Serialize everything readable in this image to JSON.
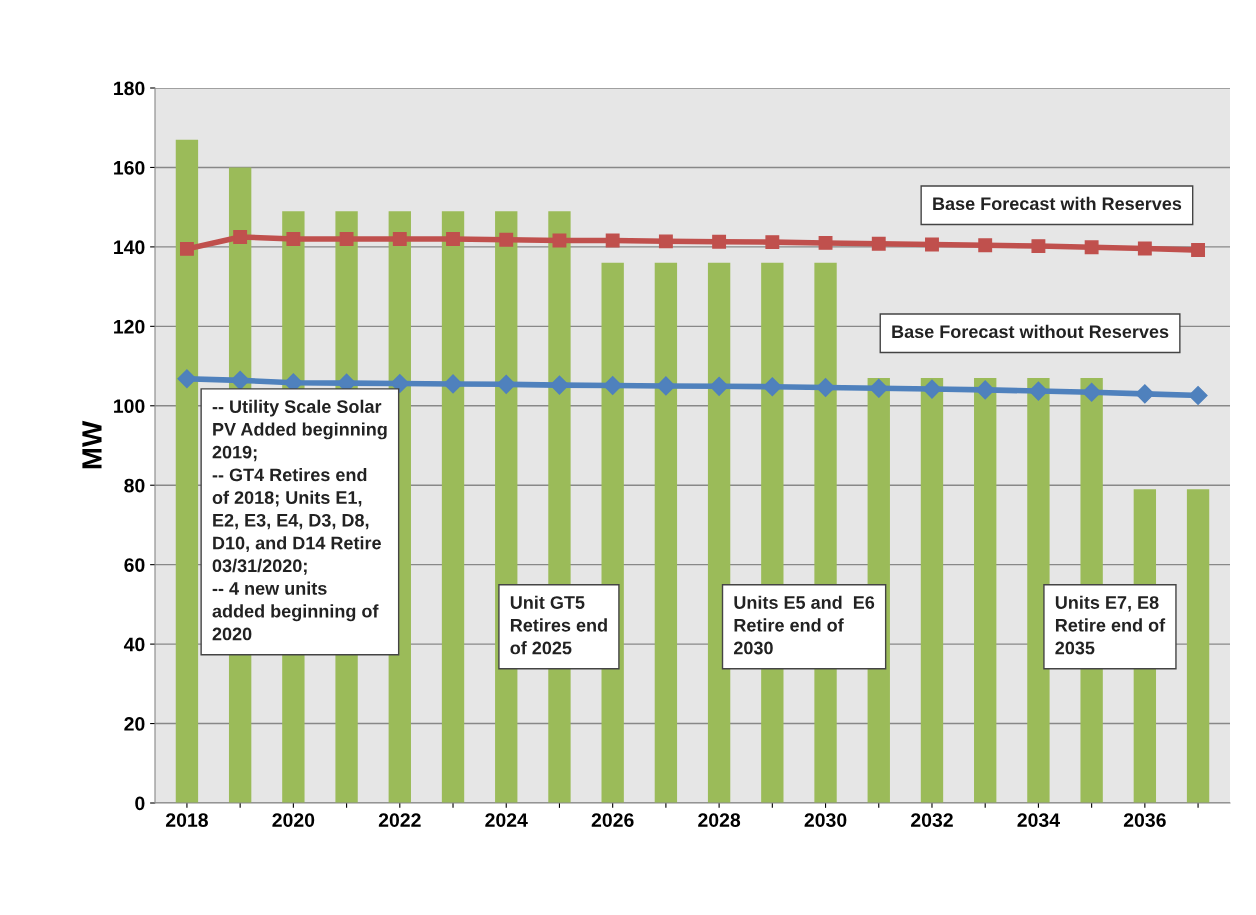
{
  "chart_data": {
    "type": "bar",
    "ylabel": "MW",
    "categories": [
      "2018",
      null,
      "2020",
      null,
      "2022",
      null,
      "2024",
      null,
      "2026",
      null,
      "2028",
      null,
      "2030",
      null,
      "2032",
      null,
      "2034",
      null,
      "2036",
      null
    ],
    "series": [
      {
        "color": "#9bbb59",
        "values": [
          167,
          160,
          149,
          149,
          149,
          149,
          149,
          149,
          136,
          136,
          136,
          136,
          136,
          107,
          107,
          107,
          107,
          107,
          79,
          79
        ]
      },
      {
        "type": "line",
        "name": "Base Forecast with Reserves",
        "color": "#c0504d",
        "marker": "square",
        "values": [
          139.5,
          142.5,
          142,
          142,
          142,
          142,
          141.8,
          141.6,
          141.6,
          141.4,
          141.3,
          141.2,
          141.0,
          140.8,
          140.6,
          140.4,
          140.2,
          139.9,
          139.6,
          139.2
        ]
      },
      {
        "type": "line",
        "name": "Base Forecast without Reserves",
        "color": "#4f81bd",
        "marker": "diamond",
        "values": [
          106.8,
          106.4,
          105.8,
          105.7,
          105.6,
          105.5,
          105.4,
          105.2,
          105.1,
          105.0,
          104.9,
          104.8,
          104.6,
          104.4,
          104.2,
          104.0,
          103.7,
          103.4,
          103.0,
          102.6
        ]
      }
    ],
    "ylim": [
      0,
      180
    ],
    "yticks": [
      0,
      20,
      40,
      60,
      80,
      100,
      120,
      140,
      160,
      180
    ],
    "grid": "y",
    "annotations": [
      "-- Utility Scale Solar\nPV Added beginning\n2019;\n-- GT4 Retires end\nof 2018; Units E1,\nE2, E3, E4, D3, D8,\nD10, and D14 Retire\n03/31/2020;\n-- 4 new units\nadded beginning of\n2020",
      "Unit GT5\nRetires end\nof 2025",
      "Units E5 and  E6\nRetire end of\n2030",
      "Units E7, E8\nRetire end of\n2035"
    ]
  }
}
